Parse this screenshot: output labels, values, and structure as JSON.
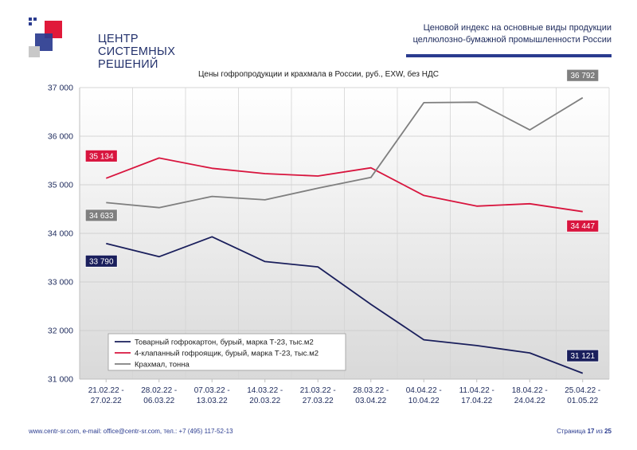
{
  "logo": {
    "lines": [
      "ЦЕНТР",
      "СИСТЕМНЫХ",
      "РЕШЕНИЙ"
    ]
  },
  "header": {
    "line1": "Ценовой индекс на основные виды продукции",
    "line2": "целлюлозно-бумажной промышленности России"
  },
  "footer": {
    "contacts": "www.centr-sr.com, e-mail: office@centr-sr.com, тел.: +7 (495) 117-52-13",
    "page_word": "Страница",
    "page_current": "17",
    "page_of": "из",
    "page_total": "25"
  },
  "colors": {
    "series1": "#1a1f5c",
    "series2": "#d8153e",
    "series3": "#7f7f7f",
    "brand_blue": "#2a3b8f",
    "brand_red": "#e0193a"
  },
  "chart_data": {
    "type": "line",
    "title": "Цены гофропродукции и крахмала в России, руб., EXW, без НДС",
    "categories": [
      [
        "21.02.22 -",
        "27.02.22"
      ],
      [
        "28.02.22 -",
        "06.03.22"
      ],
      [
        "07.03.22 -",
        "13.03.22"
      ],
      [
        "14.03.22 -",
        "20.03.22"
      ],
      [
        "21.03.22 -",
        "27.03.22"
      ],
      [
        "28.03.22 -",
        "03.04.22"
      ],
      [
        "04.04.22 -",
        "10.04.22"
      ],
      [
        "11.04.22 -",
        "17.04.22"
      ],
      [
        "18.04.22 -",
        "24.04.22"
      ],
      [
        "25.04.22 -",
        "01.05.22"
      ]
    ],
    "ylim": [
      31000,
      37000
    ],
    "yticks": [
      "31 000",
      "32 000",
      "33 000",
      "34 000",
      "35 000",
      "36 000",
      "37 000"
    ],
    "ytick_values": [
      31000,
      32000,
      33000,
      34000,
      35000,
      36000,
      37000
    ],
    "grid": true,
    "legend_position": "bottom-left",
    "series": [
      {
        "name": "Товарный гофрокартон, бурый, марка Т-23, тыс.м2",
        "values": [
          33790,
          33520,
          33930,
          33420,
          33310,
          32540,
          31810,
          31690,
          31540,
          31121
        ],
        "start_label": "33 790",
        "end_label": "31 121"
      },
      {
        "name": "4-клапанный гофроящик, бурый, марка Т-23, тыс.м2",
        "values": [
          35134,
          35550,
          35340,
          35230,
          35180,
          35350,
          34780,
          34560,
          34610,
          34447
        ],
        "start_label": "35 134",
        "end_label": "34 447"
      },
      {
        "name": "Крахмал, тонна",
        "values": [
          34633,
          34530,
          34760,
          34690,
          34930,
          35150,
          36690,
          36700,
          36130,
          36792
        ],
        "start_label": "34 633",
        "end_label": "36 792"
      }
    ]
  }
}
